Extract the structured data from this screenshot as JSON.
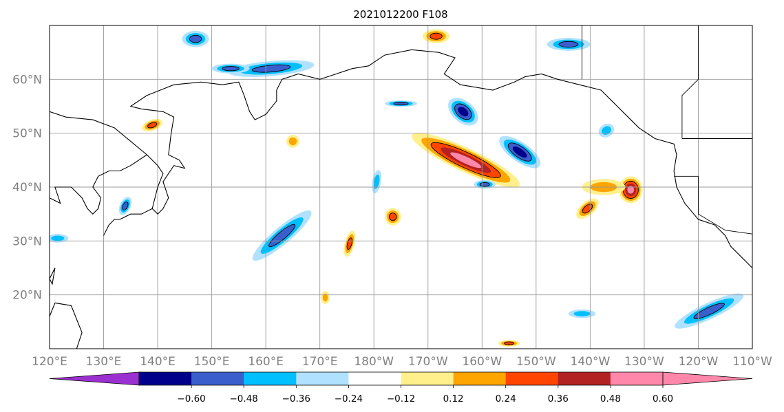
{
  "title": "2021012200 F108",
  "map": {
    "lon_range": [
      120,
      250
    ],
    "lat_range": [
      10,
      70
    ],
    "lat_ticks": [
      {
        "value": 20,
        "label": "20°N"
      },
      {
        "value": 30,
        "label": "30°N"
      },
      {
        "value": 40,
        "label": "40°N"
      },
      {
        "value": 50,
        "label": "50°N"
      },
      {
        "value": 60,
        "label": "60°N"
      }
    ],
    "lon_ticks": [
      {
        "value": 120,
        "label": "120°E"
      },
      {
        "value": 130,
        "label": "130°E"
      },
      {
        "value": 140,
        "label": "140°E"
      },
      {
        "value": 150,
        "label": "150°E"
      },
      {
        "value": 160,
        "label": "160°E"
      },
      {
        "value": 170,
        "label": "170°E"
      },
      {
        "value": 180,
        "label": "180°W"
      },
      {
        "value": 190,
        "label": "170°W"
      },
      {
        "value": 200,
        "label": "160°W"
      },
      {
        "value": 210,
        "label": "150°W"
      },
      {
        "value": 220,
        "label": "140°W"
      },
      {
        "value": 230,
        "label": "130°W"
      },
      {
        "value": 240,
        "label": "120°W"
      },
      {
        "value": 250,
        "label": "110°W"
      }
    ],
    "grid": true
  },
  "colorbar": {
    "extend": "both",
    "colors": [
      "#9b30d0",
      "#00008b",
      "#3a5fcd",
      "#00bfff",
      "#b0e2ff",
      "#ffffff",
      "#fff08c",
      "#ffa500",
      "#ff4500",
      "#b22222",
      "#ff88aa",
      "#ff88aa"
    ],
    "labels": [
      "−0.60",
      "−0.48",
      "−0.36",
      "−0.24",
      "−0.12",
      "0.12",
      "0.24",
      "0.36",
      "0.48",
      "0.60"
    ]
  },
  "features": [
    {
      "lon": 197,
      "lat": 45,
      "rx": 11,
      "ry": 2.2,
      "rot": 25,
      "value": 0.68
    },
    {
      "lon": 207,
      "lat": 46.5,
      "rx": 4.5,
      "ry": 1.8,
      "rot": 35,
      "value": -0.55
    },
    {
      "lon": 227.5,
      "lat": 39.5,
      "rx": 2.2,
      "ry": 2.5,
      "rot": 0,
      "value": 0.64
    },
    {
      "lon": 219.5,
      "lat": 36,
      "rx": 2.5,
      "ry": 1.3,
      "rot": -40,
      "value": 0.45
    },
    {
      "lon": 196.5,
      "lat": 54,
      "rx": 3.2,
      "ry": 2.0,
      "rot": 40,
      "value": -0.55
    },
    {
      "lon": 163,
      "lat": 31,
      "rx": 7,
      "ry": 1.6,
      "rot": -40,
      "value": -0.45
    },
    {
      "lon": 161,
      "lat": 62,
      "rx": 8,
      "ry": 1.4,
      "rot": -5,
      "value": -0.42
    },
    {
      "lon": 216,
      "lat": 66.5,
      "rx": 4,
      "ry": 1.2,
      "rot": 0,
      "value": -0.42
    },
    {
      "lon": 183.5,
      "lat": 34.5,
      "rx": 1.5,
      "ry": 1.6,
      "rot": 0,
      "value": 0.46
    },
    {
      "lon": 175.5,
      "lat": 29.5,
      "rx": 0.9,
      "ry": 2.5,
      "rot": 15,
      "value": 0.4
    },
    {
      "lon": 180.5,
      "lat": 41,
      "rx": 0.8,
      "ry": 2.2,
      "rot": 10,
      "value": -0.3
    },
    {
      "lon": 139,
      "lat": 51.5,
      "rx": 2,
      "ry": 1.0,
      "rot": -20,
      "value": 0.38
    },
    {
      "lon": 242,
      "lat": 17,
      "rx": 7,
      "ry": 1.5,
      "rot": -25,
      "value": -0.45
    },
    {
      "lon": 134,
      "lat": 36.5,
      "rx": 1,
      "ry": 1.8,
      "rot": 25,
      "value": -0.4
    },
    {
      "lon": 147,
      "lat": 67.5,
      "rx": 2.5,
      "ry": 1.5,
      "rot": 0,
      "value": -0.4
    },
    {
      "lon": 153.5,
      "lat": 62,
      "rx": 3.5,
      "ry": 0.9,
      "rot": 0,
      "value": -0.38
    },
    {
      "lon": 185,
      "lat": 55.5,
      "rx": 3,
      "ry": 0.6,
      "rot": 0,
      "value": -0.4
    },
    {
      "lon": 205,
      "lat": 11,
      "rx": 2,
      "ry": 0.6,
      "rot": 0,
      "value": 0.4
    },
    {
      "lon": 191.5,
      "lat": 68,
      "rx": 2.5,
      "ry": 1.3,
      "rot": 0,
      "value": 0.4
    },
    {
      "lon": 165,
      "lat": 48.5,
      "rx": 1.2,
      "ry": 1.2,
      "rot": -30,
      "value": 0.35
    },
    {
      "lon": 200.5,
      "lat": 40.5,
      "rx": 2,
      "ry": 0.8,
      "rot": 0,
      "value": -0.38
    },
    {
      "lon": 223,
      "lat": 50.5,
      "rx": 1.5,
      "ry": 1.2,
      "rot": -30,
      "value": -0.35
    },
    {
      "lon": 222.5,
      "lat": 40,
      "rx": 4,
      "ry": 1.5,
      "rot": 0,
      "value": 0.3
    },
    {
      "lon": 218.5,
      "lat": 16.5,
      "rx": 2.5,
      "ry": 0.8,
      "rot": 0,
      "value": -0.35
    },
    {
      "lon": 121.5,
      "lat": 30.5,
      "rx": 2,
      "ry": 0.8,
      "rot": 0,
      "value": -0.35
    },
    {
      "lon": 171,
      "lat": 19.5,
      "rx": 0.8,
      "ry": 1.2,
      "rot": 0,
      "value": 0.3
    }
  ],
  "coastlines": [
    [
      [
        120,
        54
      ],
      [
        123,
        53
      ],
      [
        128,
        52.5
      ],
      [
        132,
        51
      ],
      [
        135,
        48.5
      ],
      [
        138,
        46
      ],
      [
        140,
        44
      ],
      [
        141,
        42.5
      ],
      [
        140,
        40
      ],
      [
        139,
        36
      ],
      [
        140,
        35
      ],
      [
        141,
        36
      ],
      [
        142,
        38
      ],
      [
        141,
        41
      ],
      [
        143,
        44
      ],
      [
        145,
        43.5
      ],
      [
        144,
        45
      ],
      [
        142,
        46
      ],
      [
        142.5,
        50
      ],
      [
        143,
        53
      ],
      [
        141,
        54
      ],
      [
        137,
        54.5
      ],
      [
        135,
        55
      ],
      [
        138,
        57
      ],
      [
        143,
        59
      ],
      [
        148,
        59.5
      ],
      [
        152,
        59
      ],
      [
        155,
        59.5
      ],
      [
        156,
        57
      ],
      [
        157,
        54
      ],
      [
        158,
        52.5
      ],
      [
        160,
        53.5
      ],
      [
        162,
        56
      ],
      [
        162,
        58
      ],
      [
        163,
        60
      ],
      [
        166,
        61
      ],
      [
        170,
        60
      ],
      [
        173,
        61
      ],
      [
        176,
        62
      ],
      [
        179,
        62.5
      ],
      [
        182,
        64.5
      ],
      [
        187,
        65.5
      ],
      [
        192,
        65
      ],
      [
        195,
        64
      ],
      [
        193,
        61
      ],
      [
        196,
        59
      ],
      [
        202,
        58
      ],
      [
        206,
        59.5
      ],
      [
        208,
        60.5
      ],
      [
        211,
        61
      ],
      [
        214,
        60
      ],
      [
        218,
        59
      ],
      [
        222,
        58
      ],
      [
        225,
        55
      ],
      [
        227,
        53
      ],
      [
        229,
        51
      ],
      [
        232,
        49
      ],
      [
        235.5,
        48
      ],
      [
        236,
        46
      ],
      [
        235.5,
        43
      ],
      [
        236,
        40
      ],
      [
        237.5,
        37
      ],
      [
        240,
        34
      ],
      [
        243,
        33
      ],
      [
        245,
        31
      ],
      [
        246,
        29
      ],
      [
        248,
        27
      ],
      [
        250,
        25
      ]
    ],
    [
      [
        133,
        34
      ],
      [
        135,
        35
      ],
      [
        137,
        35
      ],
      [
        139,
        36
      ]
    ],
    [
      [
        130,
        31
      ],
      [
        131,
        33
      ],
      [
        132,
        34
      ],
      [
        133,
        34
      ]
    ],
    [
      [
        120,
        38
      ],
      [
        122,
        37
      ],
      [
        121,
        40
      ],
      [
        124,
        40
      ],
      [
        126,
        38
      ],
      [
        127,
        36
      ],
      [
        128,
        35
      ],
      [
        129,
        36
      ],
      [
        129.5,
        38
      ],
      [
        128,
        40
      ],
      [
        129,
        42
      ],
      [
        131,
        43
      ],
      [
        133,
        43
      ],
      [
        135,
        44
      ],
      [
        138,
        46
      ]
    ],
    [
      [
        120,
        23
      ],
      [
        121,
        25
      ],
      [
        120.5,
        22
      ],
      [
        120,
        23
      ]
    ],
    [
      [
        125,
        10
      ],
      [
        126,
        13
      ],
      [
        124,
        18
      ],
      [
        121,
        18.5
      ],
      [
        120,
        16
      ]
    ]
  ],
  "borders": [
    [
      [
        218.5,
        60
      ],
      [
        218.5,
        70
      ]
    ],
    [
      [
        237,
        49
      ],
      [
        250,
        49
      ]
    ],
    [
      [
        237,
        49
      ],
      [
        237,
        57
      ],
      [
        240,
        60
      ],
      [
        240,
        70
      ]
    ],
    [
      [
        235.5,
        42
      ],
      [
        240,
        42
      ],
      [
        240,
        35
      ],
      [
        245,
        32
      ],
      [
        250,
        31.3
      ]
    ]
  ]
}
